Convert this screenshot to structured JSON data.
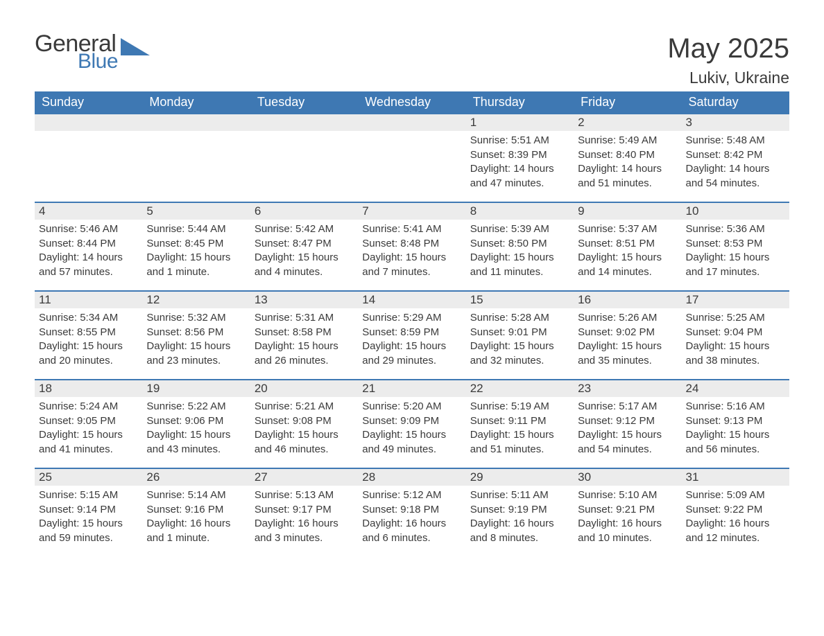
{
  "brand": {
    "general": "General",
    "blue": "Blue",
    "logo_color": "#3e78b3"
  },
  "title": "May 2025",
  "location": "Lukiv, Ukraine",
  "colors": {
    "header_bg": "#3e78b3",
    "header_text": "#ffffff",
    "daybar_bg": "#ececec",
    "daybar_border": "#3e78b3",
    "text": "#3a3a3a",
    "page_bg": "#ffffff"
  },
  "weekdays": [
    "Sunday",
    "Monday",
    "Tuesday",
    "Wednesday",
    "Thursday",
    "Friday",
    "Saturday"
  ],
  "weeks": [
    [
      null,
      null,
      null,
      null,
      {
        "n": "1",
        "sunrise": "5:51 AM",
        "sunset": "8:39 PM",
        "daylight": "14 hours and 47 minutes."
      },
      {
        "n": "2",
        "sunrise": "5:49 AM",
        "sunset": "8:40 PM",
        "daylight": "14 hours and 51 minutes."
      },
      {
        "n": "3",
        "sunrise": "5:48 AM",
        "sunset": "8:42 PM",
        "daylight": "14 hours and 54 minutes."
      }
    ],
    [
      {
        "n": "4",
        "sunrise": "5:46 AM",
        "sunset": "8:44 PM",
        "daylight": "14 hours and 57 minutes."
      },
      {
        "n": "5",
        "sunrise": "5:44 AM",
        "sunset": "8:45 PM",
        "daylight": "15 hours and 1 minute."
      },
      {
        "n": "6",
        "sunrise": "5:42 AM",
        "sunset": "8:47 PM",
        "daylight": "15 hours and 4 minutes."
      },
      {
        "n": "7",
        "sunrise": "5:41 AM",
        "sunset": "8:48 PM",
        "daylight": "15 hours and 7 minutes."
      },
      {
        "n": "8",
        "sunrise": "5:39 AM",
        "sunset": "8:50 PM",
        "daylight": "15 hours and 11 minutes."
      },
      {
        "n": "9",
        "sunrise": "5:37 AM",
        "sunset": "8:51 PM",
        "daylight": "15 hours and 14 minutes."
      },
      {
        "n": "10",
        "sunrise": "5:36 AM",
        "sunset": "8:53 PM",
        "daylight": "15 hours and 17 minutes."
      }
    ],
    [
      {
        "n": "11",
        "sunrise": "5:34 AM",
        "sunset": "8:55 PM",
        "daylight": "15 hours and 20 minutes."
      },
      {
        "n": "12",
        "sunrise": "5:32 AM",
        "sunset": "8:56 PM",
        "daylight": "15 hours and 23 minutes."
      },
      {
        "n": "13",
        "sunrise": "5:31 AM",
        "sunset": "8:58 PM",
        "daylight": "15 hours and 26 minutes."
      },
      {
        "n": "14",
        "sunrise": "5:29 AM",
        "sunset": "8:59 PM",
        "daylight": "15 hours and 29 minutes."
      },
      {
        "n": "15",
        "sunrise": "5:28 AM",
        "sunset": "9:01 PM",
        "daylight": "15 hours and 32 minutes."
      },
      {
        "n": "16",
        "sunrise": "5:26 AM",
        "sunset": "9:02 PM",
        "daylight": "15 hours and 35 minutes."
      },
      {
        "n": "17",
        "sunrise": "5:25 AM",
        "sunset": "9:04 PM",
        "daylight": "15 hours and 38 minutes."
      }
    ],
    [
      {
        "n": "18",
        "sunrise": "5:24 AM",
        "sunset": "9:05 PM",
        "daylight": "15 hours and 41 minutes."
      },
      {
        "n": "19",
        "sunrise": "5:22 AM",
        "sunset": "9:06 PM",
        "daylight": "15 hours and 43 minutes."
      },
      {
        "n": "20",
        "sunrise": "5:21 AM",
        "sunset": "9:08 PM",
        "daylight": "15 hours and 46 minutes."
      },
      {
        "n": "21",
        "sunrise": "5:20 AM",
        "sunset": "9:09 PM",
        "daylight": "15 hours and 49 minutes."
      },
      {
        "n": "22",
        "sunrise": "5:19 AM",
        "sunset": "9:11 PM",
        "daylight": "15 hours and 51 minutes."
      },
      {
        "n": "23",
        "sunrise": "5:17 AM",
        "sunset": "9:12 PM",
        "daylight": "15 hours and 54 minutes."
      },
      {
        "n": "24",
        "sunrise": "5:16 AM",
        "sunset": "9:13 PM",
        "daylight": "15 hours and 56 minutes."
      }
    ],
    [
      {
        "n": "25",
        "sunrise": "5:15 AM",
        "sunset": "9:14 PM",
        "daylight": "15 hours and 59 minutes."
      },
      {
        "n": "26",
        "sunrise": "5:14 AM",
        "sunset": "9:16 PM",
        "daylight": "16 hours and 1 minute."
      },
      {
        "n": "27",
        "sunrise": "5:13 AM",
        "sunset": "9:17 PM",
        "daylight": "16 hours and 3 minutes."
      },
      {
        "n": "28",
        "sunrise": "5:12 AM",
        "sunset": "9:18 PM",
        "daylight": "16 hours and 6 minutes."
      },
      {
        "n": "29",
        "sunrise": "5:11 AM",
        "sunset": "9:19 PM",
        "daylight": "16 hours and 8 minutes."
      },
      {
        "n": "30",
        "sunrise": "5:10 AM",
        "sunset": "9:21 PM",
        "daylight": "16 hours and 10 minutes."
      },
      {
        "n": "31",
        "sunrise": "5:09 AM",
        "sunset": "9:22 PM",
        "daylight": "16 hours and 12 minutes."
      }
    ]
  ],
  "labels": {
    "sunrise": "Sunrise: ",
    "sunset": "Sunset: ",
    "daylight": "Daylight: "
  }
}
